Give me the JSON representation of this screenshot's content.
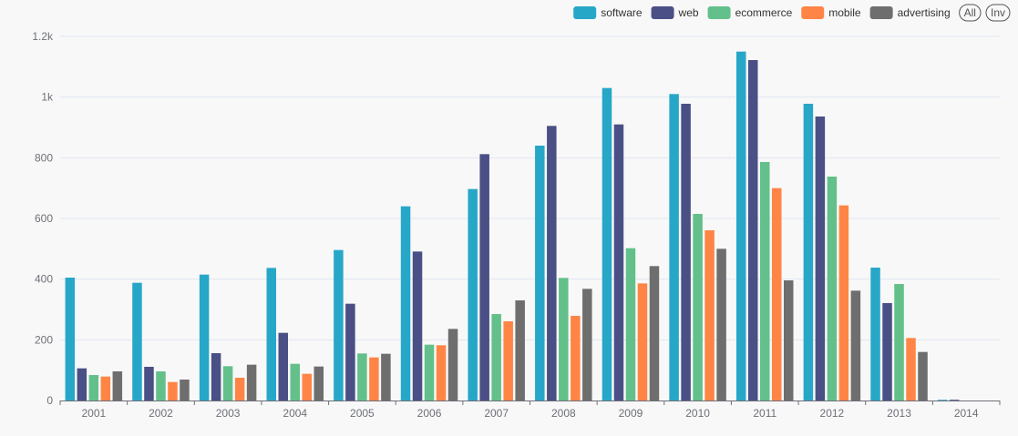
{
  "chart_data": {
    "type": "bar",
    "title": "",
    "xlabel": "",
    "ylabel": "",
    "categories": [
      "2001",
      "2002",
      "2003",
      "2004",
      "2005",
      "2006",
      "2007",
      "2008",
      "2009",
      "2010",
      "2011",
      "2012",
      "2013",
      "2014"
    ],
    "ylim": [
      0,
      1200
    ],
    "yticks": [
      0,
      200,
      400,
      600,
      800,
      1000,
      1200
    ],
    "ytick_labels": [
      "0",
      "200",
      "400",
      "600",
      "800",
      "1k",
      "1.2k"
    ],
    "grid": true,
    "legend_position": "top-right",
    "series": [
      {
        "name": "software",
        "color": "#27a7c8",
        "values": [
          405,
          388,
          415,
          437,
          496,
          640,
          697,
          840,
          1030,
          1010,
          1150,
          978,
          438,
          1
        ]
      },
      {
        "name": "web",
        "color": "#4a4f85",
        "values": [
          106,
          111,
          156,
          223,
          319,
          491,
          812,
          905,
          910,
          978,
          1122,
          936,
          321,
          1
        ]
      },
      {
        "name": "ecommerce",
        "color": "#63c08a",
        "values": [
          84,
          96,
          113,
          121,
          155,
          184,
          285,
          404,
          502,
          615,
          786,
          738,
          384,
          0
        ]
      },
      {
        "name": "mobile",
        "color": "#ff8546",
        "values": [
          79,
          61,
          75,
          88,
          142,
          182,
          261,
          279,
          386,
          561,
          700,
          643,
          206,
          0
        ]
      },
      {
        "name": "advertising",
        "color": "#6e6e6e",
        "values": [
          96,
          69,
          118,
          112,
          154,
          236,
          330,
          368,
          443,
          500,
          396,
          362,
          160,
          0
        ]
      }
    ]
  },
  "legend": {
    "buttons": [
      {
        "label": "All",
        "name": "legend-all-button"
      },
      {
        "label": "Inv",
        "name": "legend-inverse-button"
      }
    ]
  },
  "colors": {
    "axis": "#6e7079",
    "grid": "#e0e6f1",
    "background": "#f8f8f8"
  }
}
